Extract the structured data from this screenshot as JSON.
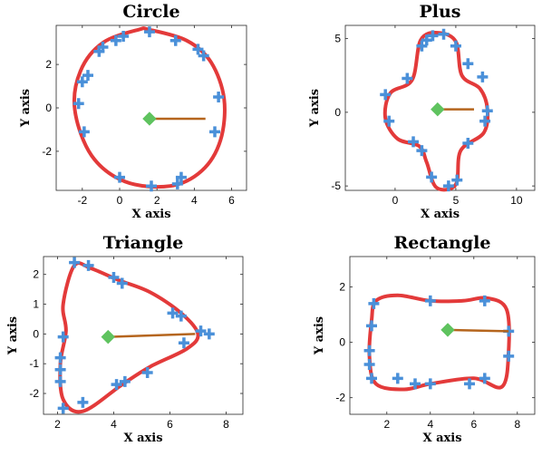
{
  "chart_data": [
    {
      "type": "scatter",
      "title": "Circle",
      "xlabel": "X axis",
      "ylabel": "Y axis",
      "xlim": [
        -3.4,
        6.8
      ],
      "ylim": [
        -3.8,
        3.8
      ],
      "xticks": [
        -2,
        0,
        2,
        4,
        6
      ],
      "yticks": [
        -2,
        0,
        2
      ],
      "grid": false,
      "series": [
        {
          "role": "points",
          "color": "#4a90d9",
          "marker": "plus",
          "x": [
            -1.7,
            -1.1,
            -0.9,
            -0.2,
            0.2,
            1.6,
            3.0,
            4.2,
            4.5,
            5.3,
            5.1,
            3.3,
            3.1,
            1.7,
            0.0,
            -1.9,
            -2.2,
            -2.0
          ],
          "y": [
            1.5,
            2.6,
            2.8,
            3.1,
            3.3,
            3.5,
            3.1,
            2.7,
            2.4,
            0.5,
            -1.1,
            -3.2,
            -3.5,
            -3.6,
            -3.2,
            -1.1,
            0.2,
            1.2
          ]
        },
        {
          "role": "boundary",
          "color": "#e33a3a",
          "x": [
            1.6,
            3.6,
            4.9,
            5.6,
            5.4,
            4.4,
            2.7,
            0.3,
            -1.5,
            -2.4,
            -2.1,
            -0.9,
            1.0,
            1.6
          ],
          "y": [
            3.6,
            3.1,
            2.1,
            0.4,
            -1.5,
            -2.9,
            -3.6,
            -3.4,
            -2.2,
            -0.1,
            1.7,
            3.0,
            3.6,
            3.6
          ]
        },
        {
          "role": "center",
          "color": "#5fc35f",
          "marker": "diamond",
          "x": [
            1.6
          ],
          "y": [
            -0.5
          ]
        },
        {
          "role": "heading",
          "color": "#b5651d",
          "x": [
            1.6,
            4.6
          ],
          "y": [
            -0.5,
            -0.5
          ]
        }
      ]
    },
    {
      "type": "scatter",
      "title": "Plus",
      "xlabel": "X axis",
      "ylabel": "Y axis",
      "xlim": [
        -4.1,
        11.5
      ],
      "ylim": [
        -5.3,
        5.9
      ],
      "xticks": [
        0,
        5,
        10
      ],
      "yticks": [
        -5,
        0,
        5
      ],
      "grid": false,
      "series": [
        {
          "role": "points",
          "color": "#4a90d9",
          "marker": "plus",
          "x": [
            2.2,
            2.6,
            3.1,
            4.0,
            5.0,
            6.0,
            7.2,
            7.6,
            7.4,
            6.0,
            5.1,
            4.4,
            3.0,
            2.2,
            1.5,
            -0.5,
            -0.8,
            1.0
          ],
          "y": [
            4.5,
            4.9,
            5.2,
            5.3,
            4.5,
            3.3,
            2.4,
            0.1,
            -0.6,
            -2.1,
            -4.6,
            -5.0,
            -4.4,
            -2.6,
            -2.0,
            -0.6,
            1.2,
            2.3
          ]
        },
        {
          "role": "boundary",
          "color": "#e33a3a",
          "x": [
            3.5,
            5.0,
            5.5,
            7.0,
            7.6,
            7.3,
            5.4,
            5.0,
            3.4,
            2.6,
            2.0,
            0.2,
            -0.8,
            -0.4,
            1.4,
            2.1,
            3.5
          ],
          "y": [
            5.4,
            4.8,
            2.5,
            1.6,
            0.2,
            -1.4,
            -2.6,
            -4.9,
            -5.1,
            -3.4,
            -2.3,
            -1.8,
            -0.4,
            1.3,
            2.2,
            4.9,
            5.4
          ]
        },
        {
          "role": "center",
          "color": "#5fc35f",
          "marker": "diamond",
          "x": [
            3.5
          ],
          "y": [
            0.2
          ]
        },
        {
          "role": "heading",
          "color": "#b5651d",
          "x": [
            3.5,
            6.5
          ],
          "y": [
            0.2,
            0.2
          ]
        }
      ]
    },
    {
      "type": "scatter",
      "title": "Triangle",
      "xlabel": "X axis",
      "ylabel": "Y axis",
      "xlim": [
        1.5,
        8.6
      ],
      "ylim": [
        -2.7,
        2.6
      ],
      "xticks": [
        2,
        4,
        6,
        8
      ],
      "yticks": [
        -2,
        -1,
        0,
        1,
        2
      ],
      "grid": false,
      "series": [
        {
          "role": "points",
          "color": "#4a90d9",
          "marker": "plus",
          "x": [
            2.6,
            3.1,
            4.0,
            4.3,
            6.1,
            6.4,
            7.1,
            7.4,
            6.5,
            5.2,
            4.4,
            4.1,
            2.9,
            2.2,
            2.1,
            2.1,
            2.1,
            2.2
          ],
          "y": [
            2.4,
            2.3,
            1.9,
            1.7,
            0.7,
            0.6,
            0.1,
            0.0,
            -0.3,
            -1.3,
            -1.6,
            -1.7,
            -2.3,
            -2.5,
            -1.6,
            -1.2,
            -0.8,
            -0.1
          ]
        },
        {
          "role": "boundary",
          "color": "#e33a3a",
          "x": [
            2.6,
            3.2,
            4.2,
            5.3,
            6.4,
            7.0,
            6.6,
            5.3,
            4.3,
            2.9,
            2.2,
            2.1,
            2.3,
            2.2,
            2.6
          ],
          "y": [
            2.3,
            2.2,
            1.8,
            1.4,
            0.7,
            0.0,
            -0.5,
            -1.1,
            -1.7,
            -2.6,
            -2.2,
            -1.0,
            0.1,
            1.0,
            2.3
          ]
        },
        {
          "role": "center",
          "color": "#5fc35f",
          "marker": "diamond",
          "x": [
            3.8
          ],
          "y": [
            -0.1
          ]
        },
        {
          "role": "heading",
          "color": "#b5651d",
          "x": [
            3.8,
            6.9
          ],
          "y": [
            -0.1,
            0.0
          ]
        }
      ]
    },
    {
      "type": "scatter",
      "title": "Rectangle",
      "xlabel": "X axis",
      "ylabel": "Y axis",
      "xlim": [
        0.3,
        8.8
      ],
      "ylim": [
        -2.6,
        3.1
      ],
      "xticks": [
        2,
        4,
        6,
        8
      ],
      "yticks": [
        -2,
        0,
        2
      ],
      "grid": false,
      "series": [
        {
          "role": "points",
          "color": "#4a90d9",
          "marker": "plus",
          "x": [
            1.4,
            4.0,
            6.5,
            7.6,
            7.6,
            6.5,
            5.8,
            4.0,
            3.3,
            2.5,
            1.3,
            1.2,
            1.2,
            1.3
          ],
          "y": [
            1.4,
            1.5,
            1.5,
            0.4,
            -0.5,
            -1.3,
            -1.5,
            -1.5,
            -1.5,
            -1.3,
            -1.3,
            -0.8,
            -0.3,
            0.6
          ]
        },
        {
          "role": "boundary",
          "color": "#e33a3a",
          "x": [
            1.5,
            2.5,
            4.0,
            5.5,
            6.6,
            7.5,
            7.6,
            7.3,
            6.0,
            4.0,
            2.8,
            1.5,
            1.2,
            1.3,
            1.5
          ],
          "y": [
            1.5,
            1.7,
            1.5,
            1.5,
            1.6,
            1.2,
            -0.3,
            -1.6,
            -1.3,
            -1.5,
            -1.7,
            -1.5,
            -0.5,
            0.8,
            1.5
          ]
        },
        {
          "role": "center",
          "color": "#5fc35f",
          "marker": "diamond",
          "x": [
            4.8
          ],
          "y": [
            0.45
          ]
        },
        {
          "role": "heading",
          "color": "#b5651d",
          "x": [
            4.8,
            7.6
          ],
          "y": [
            0.45,
            0.4
          ]
        }
      ]
    }
  ]
}
